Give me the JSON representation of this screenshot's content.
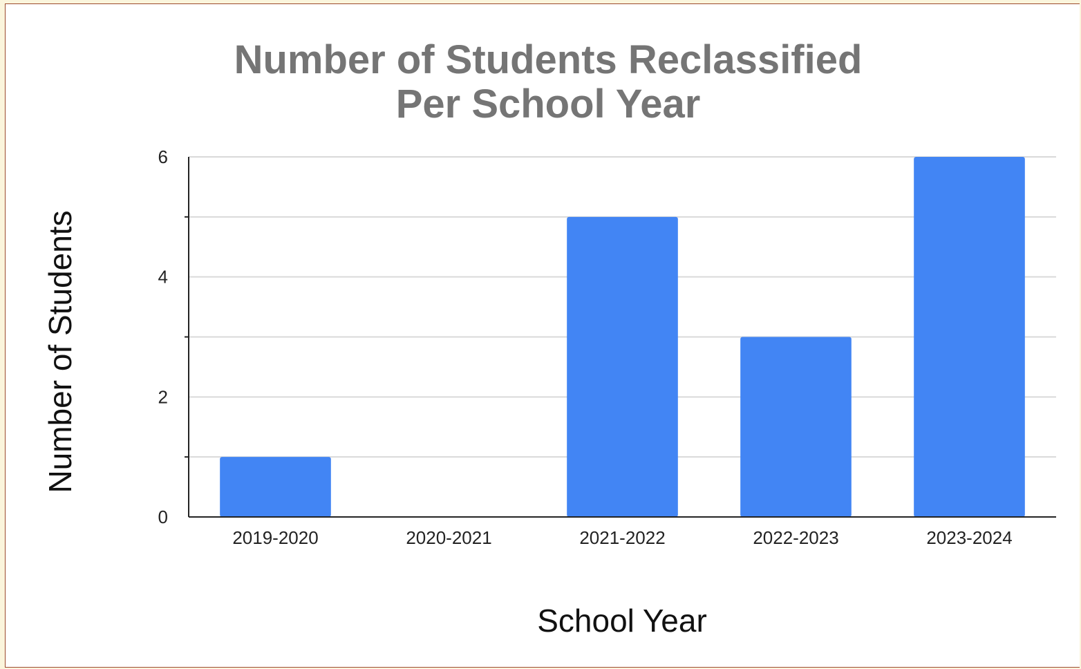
{
  "chart_data": {
    "type": "bar",
    "title": [
      "Number of Students Reclassified",
      "Per School Year"
    ],
    "xlabel": "School Year",
    "ylabel": "Number of Students",
    "categories": [
      "2019-2020",
      "2020-2021",
      "2021-2022",
      "2022-2023",
      "2023-2024"
    ],
    "values": [
      1,
      0,
      5,
      3,
      6
    ],
    "ylim": [
      0,
      6
    ],
    "yticks": [
      "0",
      "2",
      "4",
      "6"
    ],
    "grid": true,
    "legend": "none",
    "colors": {
      "bar": "#4285f4",
      "title": "#757575",
      "grid": "#d9d9d9",
      "axis": "#222222"
    }
  }
}
